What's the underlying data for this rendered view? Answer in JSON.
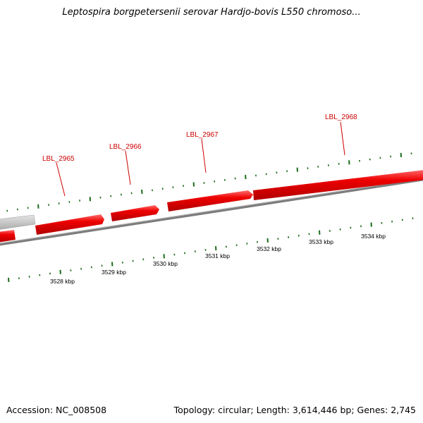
{
  "title": "Leptospira borgpetersenii serovar Hardjo-bovis L550 chromoso...",
  "footer": {
    "accession_label": "Accession: NC_008508",
    "summary_label": "Topology: circular; Length: 3,614,446 bp; Genes: 2,745"
  },
  "colors": {
    "forward_gene": "#ee0000",
    "gene_highlight": "#ff6a6a",
    "other_gene": "#c8c8c8",
    "backbone": "#8a8a8a",
    "tick": "#1a6e1a",
    "gene_label": "#cc0000",
    "scale_label": "#000000"
  },
  "genes": [
    {
      "label": "LBL_2965"
    },
    {
      "label": "LBL_2966"
    },
    {
      "label": "LBL_2967"
    },
    {
      "label": "LBL_2968"
    }
  ],
  "scale_labels": [
    "3528 kbp",
    "3529 kbp",
    "3530 kbp",
    "3531 kbp",
    "3532 kbp",
    "3533 kbp",
    "3534 kbp"
  ]
}
